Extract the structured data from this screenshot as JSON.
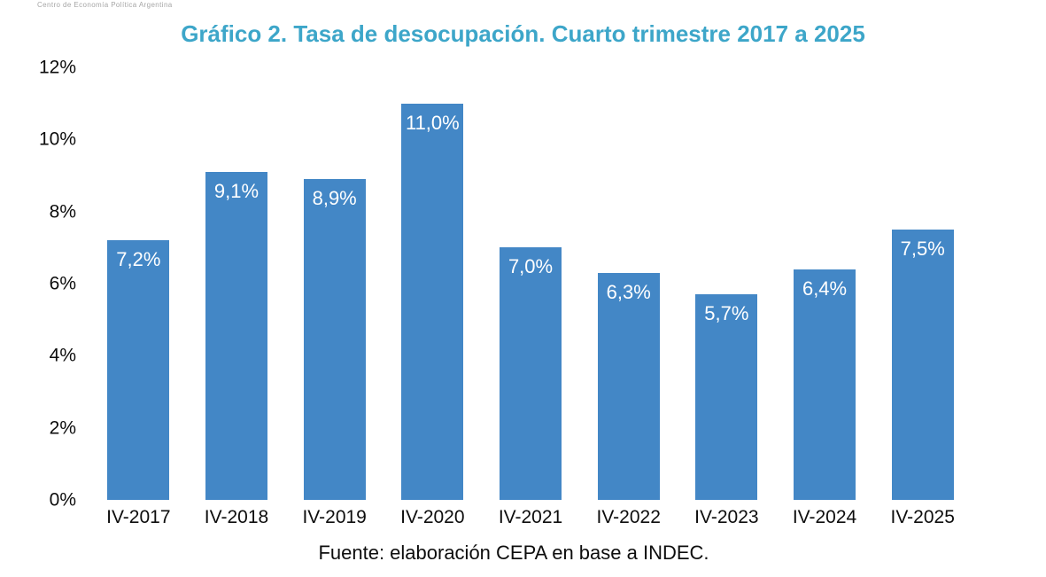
{
  "logo": {
    "text": "Centro de Economía Política Argentina"
  },
  "chart_data": {
    "type": "bar",
    "title": "Gráfico 2. Tasa de desocupación. Cuarto trimestre 2017 a 2025",
    "categories": [
      "IV-2017",
      "IV-2018",
      "IV-2019",
      "IV-2020",
      "IV-2021",
      "IV-2022",
      "IV-2023",
      "IV-2024",
      "IV-2025"
    ],
    "values": [
      7.2,
      9.1,
      8.9,
      11.0,
      7.0,
      6.3,
      5.7,
      6.4,
      7.5
    ],
    "value_labels": [
      "7,2%",
      "9,1%",
      "8,9%",
      "11,0%",
      "7,0%",
      "6,3%",
      "5,7%",
      "6,4%",
      "7,5%"
    ],
    "xlabel": "",
    "ylabel": "",
    "ylim": [
      0,
      12
    ],
    "ytick_values": [
      0,
      2,
      4,
      6,
      8,
      10,
      12
    ],
    "ytick_labels": [
      "0%",
      "2%",
      "4%",
      "6%",
      "8%",
      "10%",
      "12%"
    ],
    "grid": false,
    "legend_position": "none",
    "bar_color": "#4387c6",
    "value_label_color": "#ffffff",
    "title_color": "#3da6c9",
    "source_note": "Fuente: elaboración CEPA en base a INDEC."
  }
}
